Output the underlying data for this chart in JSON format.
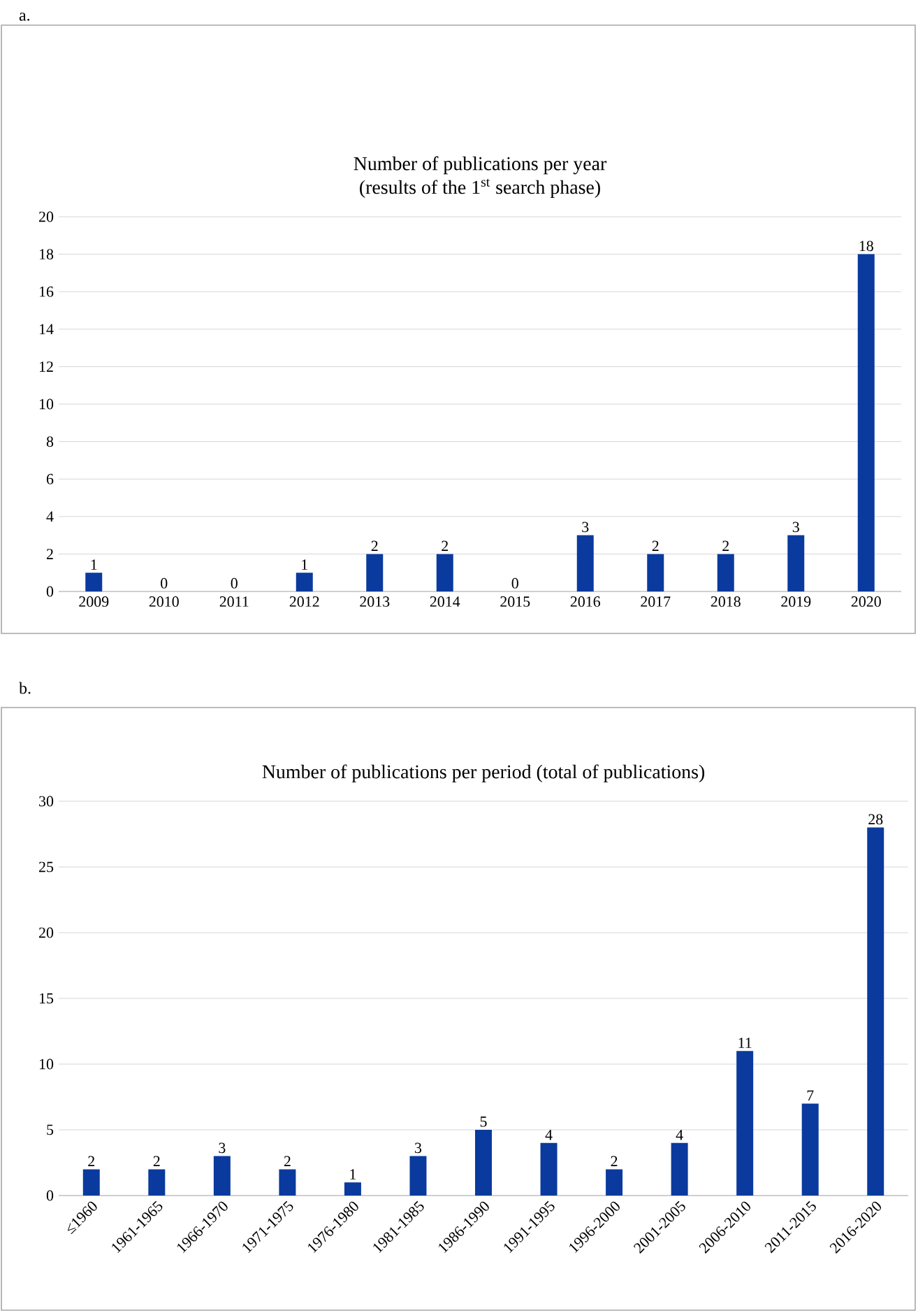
{
  "chart_data": [
    {
      "type": "bar",
      "title": "Number of publications per year",
      "subtitle": "(results of the 1$^{st}$ search phase)",
      "annotations": [
        "a."
      ],
      "categories": [
        "2009",
        "2010",
        "2011",
        "2012",
        "2013",
        "2014",
        "2015",
        "2016",
        "2017",
        "2018",
        "2019",
        "2020"
      ],
      "values": [
        1,
        0,
        0,
        1,
        2,
        2,
        0,
        3,
        2,
        2,
        3,
        18
      ],
      "color": "#0a3a9e",
      "ylim": [
        0,
        20
      ],
      "yticks": [
        0,
        2,
        4,
        6,
        8,
        10,
        12,
        14,
        16,
        18,
        20
      ],
      "grid": "y",
      "data_labels": true
    },
    {
      "type": "bar",
      "title": "Number of publications per period (total of publications)",
      "annotations": [
        "b."
      ],
      "categories": [
        "≤1960",
        "1961-1965",
        "1966-1970",
        "1971-1975",
        "1976-1980",
        "1981-1985",
        "1986-1990",
        "1991-1995",
        "1996-2000",
        "2001-2005",
        "2006-2010",
        "2011-2015",
        "2016-2020"
      ],
      "values": [
        2,
        2,
        3,
        2,
        1,
        3,
        5,
        4,
        2,
        4,
        11,
        7,
        28
      ],
      "color": "#0a3a9e",
      "ylim": [
        0,
        30
      ],
      "yticks": [
        0,
        5,
        10,
        15,
        20,
        25,
        30
      ],
      "grid": "y",
      "data_labels": true
    }
  ]
}
